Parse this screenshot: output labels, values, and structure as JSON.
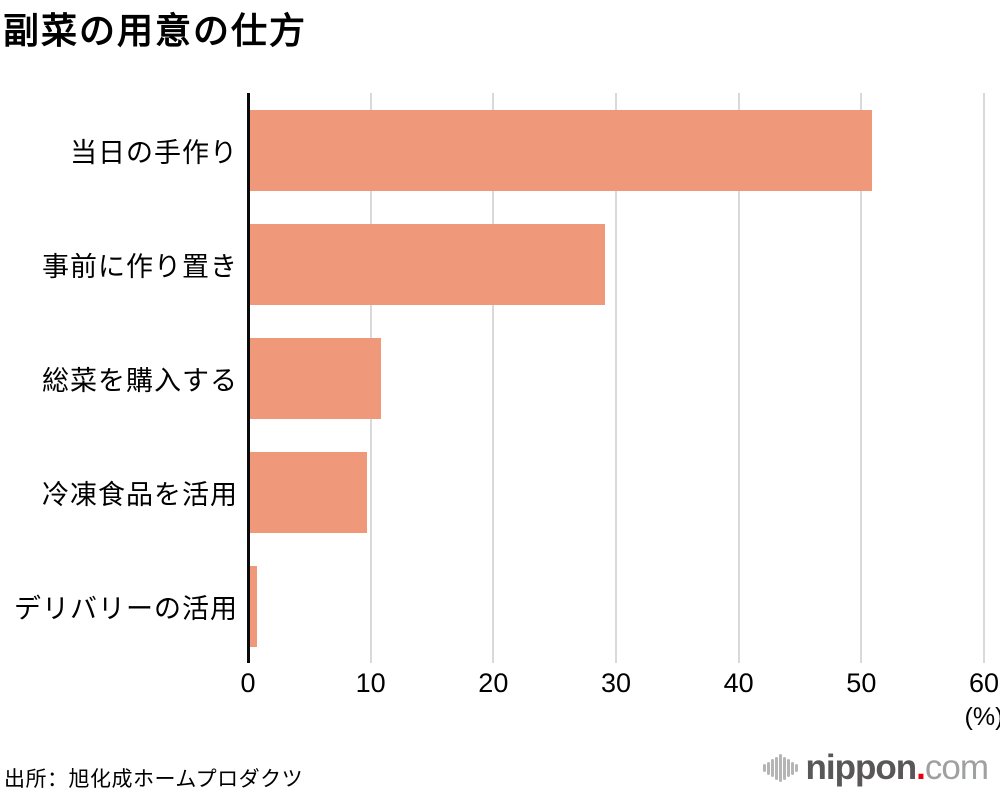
{
  "title": "副菜の用意の仕方",
  "chart_data": {
    "type": "bar",
    "orientation": "horizontal",
    "title": "副菜の用意の仕方",
    "categories": [
      "当日の手作り",
      "事前に作り置き",
      "総菜を購入する",
      "冷凍食品を活用",
      "デリバリーの活用"
    ],
    "values": [
      50.7,
      28.9,
      10.7,
      9.5,
      0.6
    ],
    "xlabel": "(%)",
    "ylabel": "",
    "xlim": [
      0,
      60
    ],
    "xticks": [
      0,
      10,
      20,
      30,
      40,
      50,
      60
    ],
    "grid": true,
    "legend": "none",
    "bar_color": "#f0987a",
    "gridline_color": "#d9d9d9",
    "axis_color": "#0a0a0a"
  },
  "x_axis": {
    "tick_labels": [
      "0",
      "10",
      "20",
      "30",
      "40",
      "50",
      "60"
    ],
    "unit_label": "(%)"
  },
  "source": "出所：旭化成ホームプロダクツ",
  "logo": {
    "name": "nippon",
    "dot": ".",
    "tld": "com",
    "icon": "soundwave-icon",
    "name_color": "#595757",
    "dot_color": "#e60012",
    "tld_color": "#9fa0a0"
  }
}
